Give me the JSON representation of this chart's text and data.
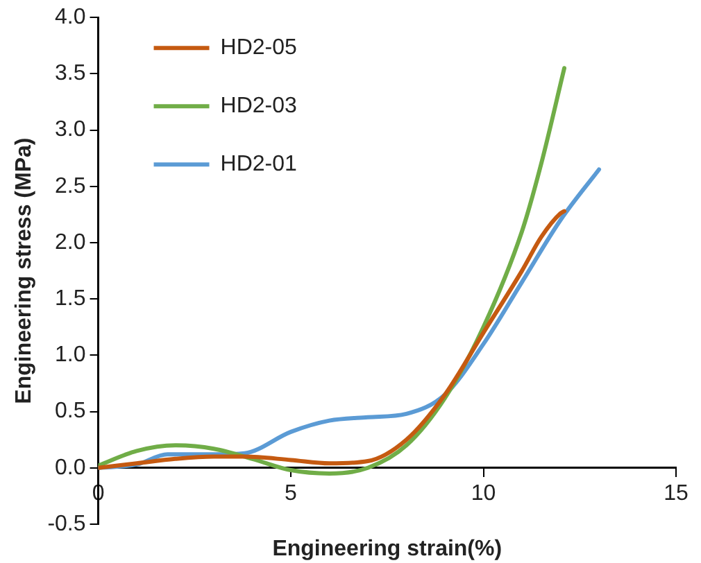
{
  "chart_data": {
    "type": "line",
    "xlabel": "Engineering strain(%)",
    "ylabel": "Engineering stress (MPa)",
    "xlim": [
      0,
      15
    ],
    "xticks": [
      0,
      5,
      10,
      15
    ],
    "ylim": [
      -0.5,
      4.0
    ],
    "yticks": [
      {
        "value": -0.5,
        "label": "-0.5"
      },
      {
        "value": 0,
        "label": "0.0"
      },
      {
        "value": 0.5,
        "label": "0.5"
      },
      {
        "value": 1,
        "label": "1.0"
      },
      {
        "value": 1.5,
        "label": "1.5"
      },
      {
        "value": 2,
        "label": "2.0"
      },
      {
        "value": 2.5,
        "label": "2.5"
      },
      {
        "value": 3,
        "label": "3.0"
      },
      {
        "value": 3.5,
        "label": "3.5"
      },
      {
        "value": 4,
        "label": "4.0"
      }
    ],
    "grid": false,
    "legend": "top left",
    "marker": "none",
    "line_style": "solid",
    "series": [
      {
        "name": "HD2-05",
        "color": "#c55a11",
        "x": [
          0,
          1,
          2,
          3,
          3.8,
          5,
          6,
          7,
          8,
          9,
          10,
          11,
          11.5,
          12,
          12.1
        ],
        "values": [
          0,
          0.04,
          0.08,
          0.1,
          0.1,
          0.07,
          0.04,
          0.06,
          0.25,
          0.65,
          1.2,
          1.75,
          2.05,
          2.26,
          2.28
        ]
      },
      {
        "name": "HD2-03",
        "color": "#70ad47",
        "x": [
          0,
          1,
          2,
          3,
          4,
          5,
          6,
          7,
          8,
          9,
          10,
          11,
          11.5,
          12.1
        ],
        "values": [
          0.02,
          0.15,
          0.2,
          0.17,
          0.08,
          -0.02,
          -0.05,
          0,
          0.2,
          0.62,
          1.25,
          2.1,
          2.7,
          3.55
        ]
      },
      {
        "name": "HD2-01",
        "color": "#5b9bd5",
        "x": [
          0,
          1,
          1.8,
          3,
          3.8,
          5,
          6,
          7,
          8,
          9,
          10,
          11,
          12,
          13
        ],
        "values": [
          0,
          0.03,
          0.12,
          0.12,
          0.13,
          0.32,
          0.42,
          0.45,
          0.48,
          0.65,
          1.1,
          1.65,
          2.2,
          2.65
        ]
      }
    ]
  }
}
